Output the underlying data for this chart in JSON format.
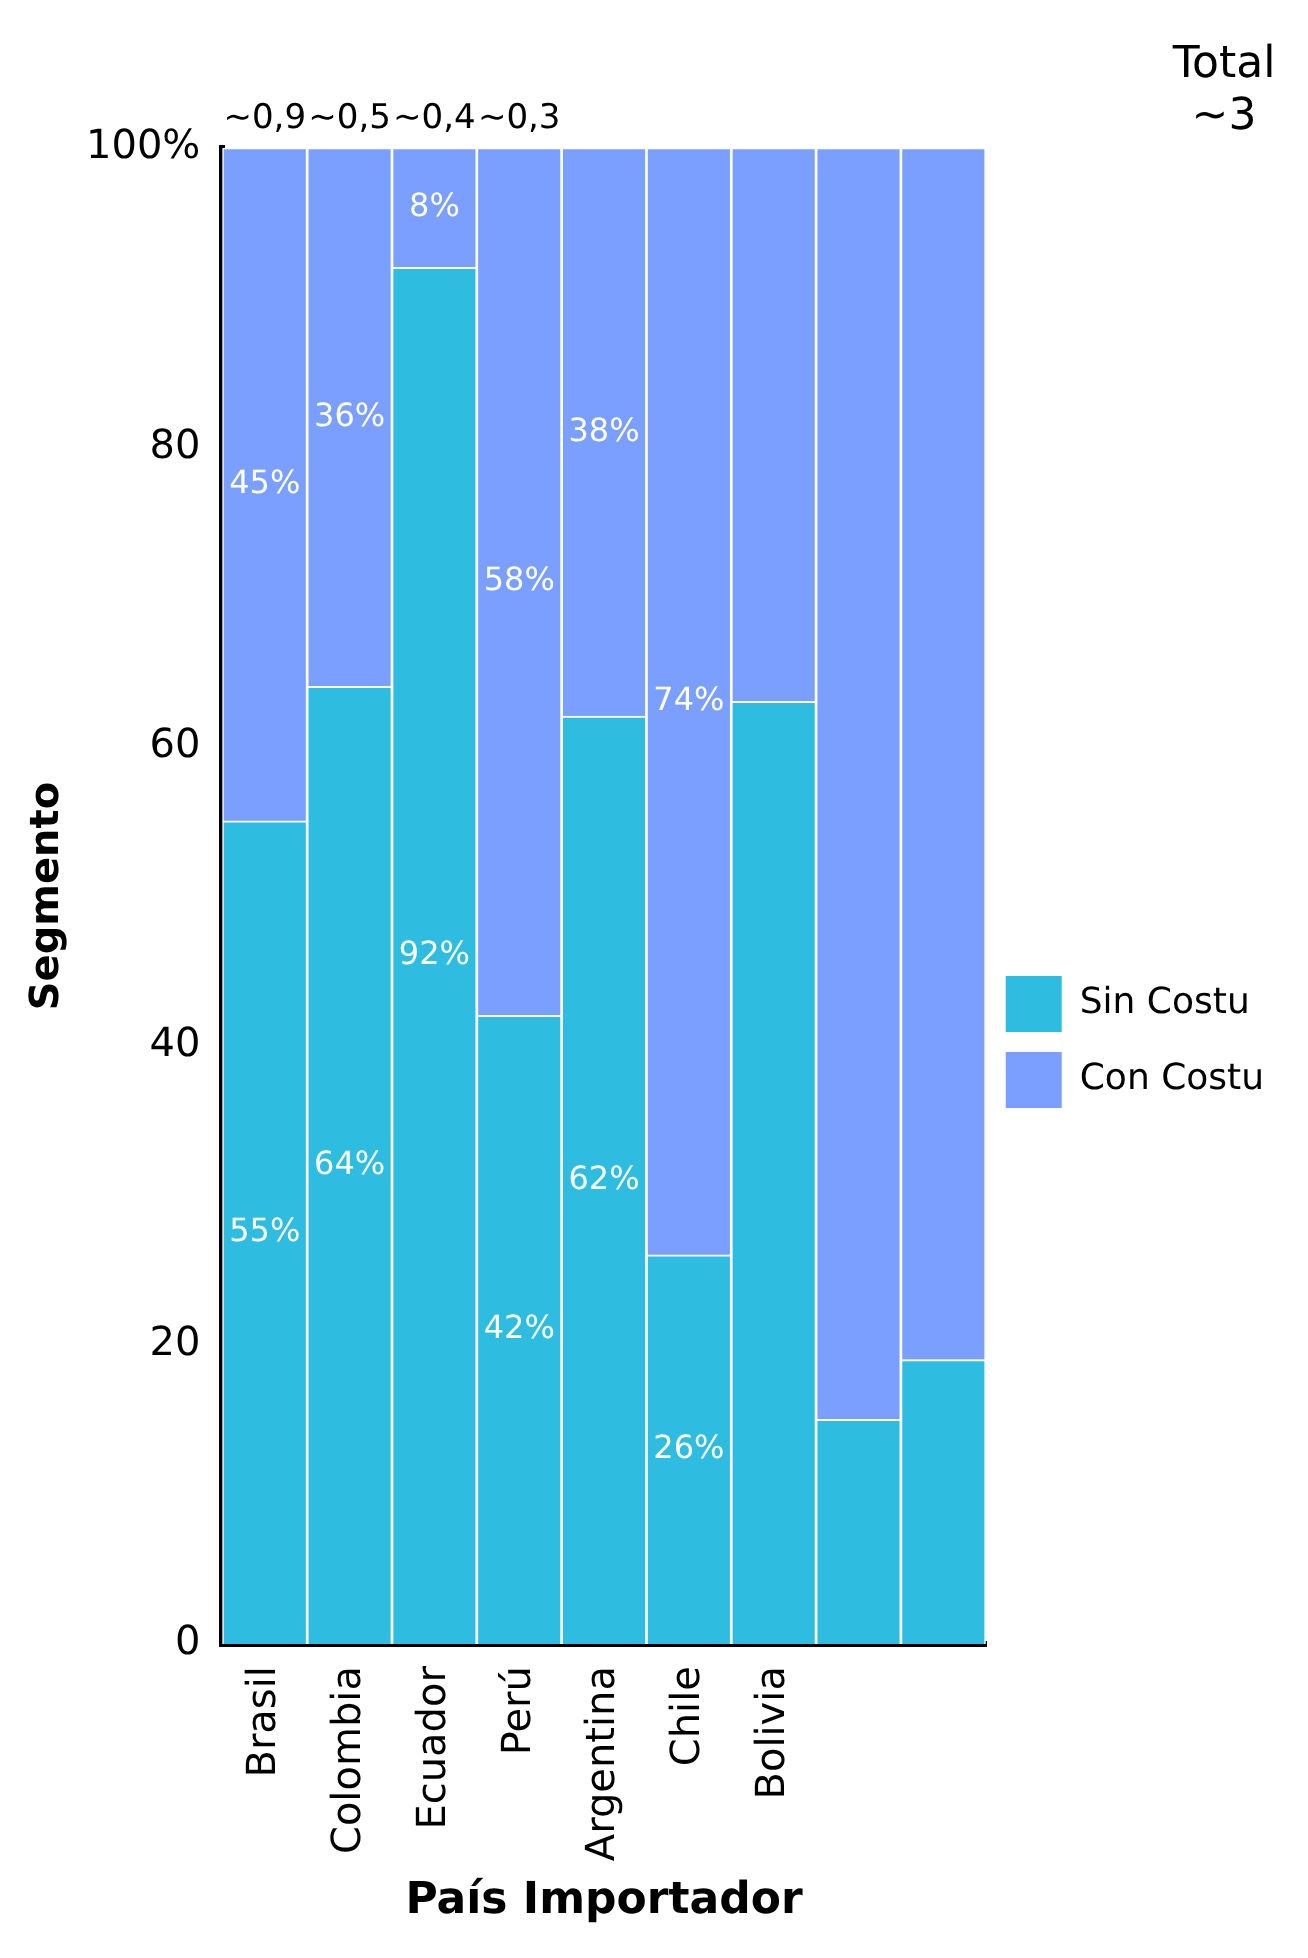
{
  "chart_data": {
    "type": "bar",
    "stacked": true,
    "xlabel": "País Importador",
    "ylabel": "Segmento",
    "categories": [
      "Brasil",
      "Colombia",
      "Ecuador",
      "Perú",
      "Argentina",
      "Chile",
      "Bolivia",
      null,
      null
    ],
    "series": [
      {
        "name": "Sin Costu",
        "color": "#2ebde0",
        "values": [
          55,
          64,
          92,
          42,
          62,
          26,
          63,
          15,
          19
        ],
        "value_labels": [
          "55%",
          "64%",
          "92%",
          "42%",
          "62%",
          "26%",
          null,
          null,
          null
        ]
      },
      {
        "name": "Con Costu",
        "color": "#7b9fff",
        "values": [
          45,
          36,
          8,
          58,
          38,
          74,
          37,
          85,
          81
        ],
        "value_labels": [
          "45%",
          "36%",
          "8%",
          "58%",
          "38%",
          "74%",
          null,
          null,
          null
        ]
      }
    ],
    "ylim": [
      0,
      100
    ],
    "yticks": [
      0,
      20,
      40,
      60,
      80,
      {
        "value": 100,
        "label": "100%"
      }
    ],
    "grid": false,
    "legend": "right",
    "annotations": [
      "~0,9",
      "~0,5",
      "~0,4",
      "~0,3",
      "Total ~3"
    ]
  }
}
